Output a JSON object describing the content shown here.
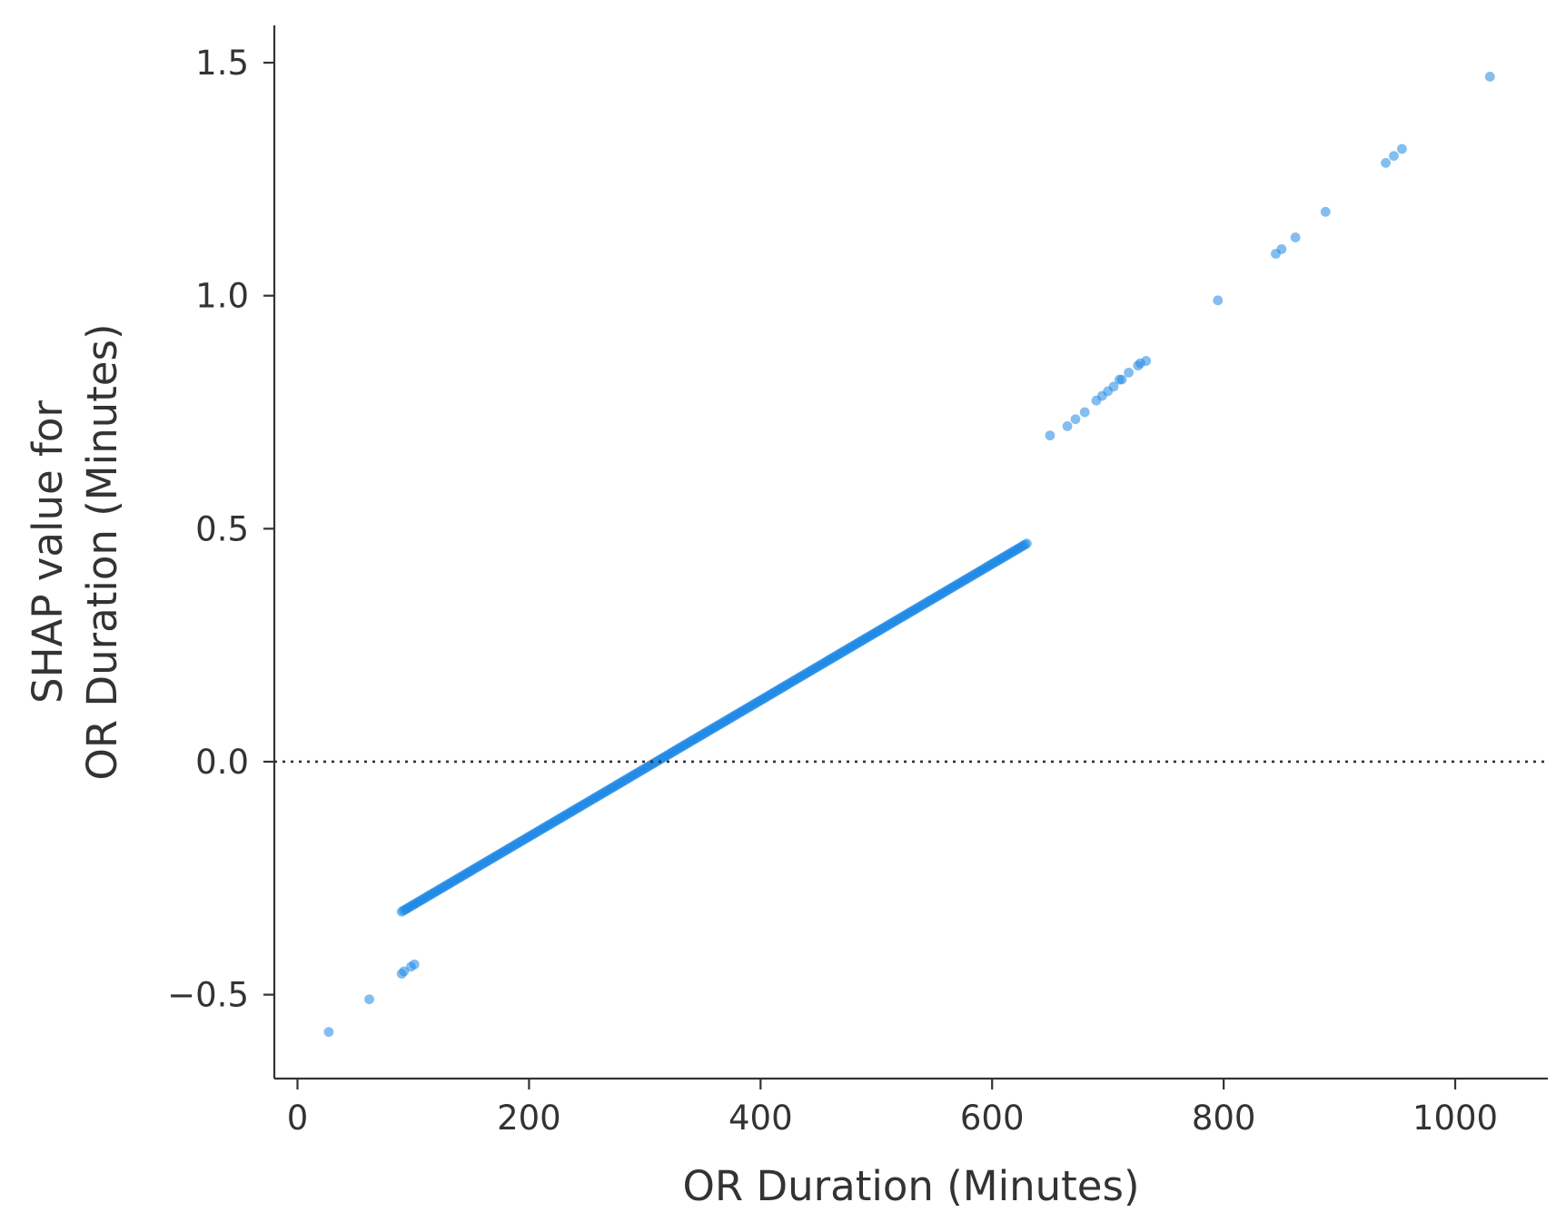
{
  "chart_data": {
    "type": "scatter",
    "title": "",
    "xlabel": "OR Duration (Minutes)",
    "ylabel_line1": "SHAP value for",
    "ylabel_line2": "OR Duration (Minutes)",
    "xlim": [
      -20,
      1080
    ],
    "ylim": [
      -0.68,
      1.58
    ],
    "x_ticks": [
      0,
      200,
      400,
      600,
      800,
      1000
    ],
    "x_tick_labels": [
      "0",
      "200",
      "400",
      "600",
      "800",
      "1000"
    ],
    "y_ticks": [
      -0.5,
      0.0,
      0.5,
      1.0,
      1.5
    ],
    "y_tick_labels": [
      "−0.5",
      "0.0",
      "0.5",
      "1.0",
      "1.5"
    ],
    "reference_line": {
      "y": 0.0,
      "style": "dotted"
    },
    "marker_color": "#1e88e5",
    "marker_opacity": 0.55,
    "grid": false,
    "legend": "none",
    "trend": {
      "x_start": 90,
      "x_end": 735,
      "slope": 0.001463,
      "zero_crossing": 310,
      "step": 1.5
    },
    "points": [
      {
        "x": 27,
        "y": -0.58
      },
      {
        "x": 62,
        "y": -0.51
      },
      {
        "x": 90,
        "y": -0.455
      },
      {
        "x": 92,
        "y": -0.45
      },
      {
        "x": 98,
        "y": -0.44
      },
      {
        "x": 101,
        "y": -0.435
      },
      {
        "x": 650,
        "y": 0.7
      },
      {
        "x": 665,
        "y": 0.72
      },
      {
        "x": 672,
        "y": 0.735
      },
      {
        "x": 680,
        "y": 0.75
      },
      {
        "x": 690,
        "y": 0.775
      },
      {
        "x": 695,
        "y": 0.785
      },
      {
        "x": 700,
        "y": 0.795
      },
      {
        "x": 705,
        "y": 0.805
      },
      {
        "x": 710,
        "y": 0.82
      },
      {
        "x": 712,
        "y": 0.82
      },
      {
        "x": 718,
        "y": 0.835
      },
      {
        "x": 726,
        "y": 0.85
      },
      {
        "x": 728,
        "y": 0.855
      },
      {
        "x": 733,
        "y": 0.86
      },
      {
        "x": 795,
        "y": 0.99
      },
      {
        "x": 845,
        "y": 1.09
      },
      {
        "x": 850,
        "y": 1.1
      },
      {
        "x": 862,
        "y": 1.125
      },
      {
        "x": 888,
        "y": 1.18
      },
      {
        "x": 940,
        "y": 1.285
      },
      {
        "x": 947,
        "y": 1.3
      },
      {
        "x": 954,
        "y": 1.315
      },
      {
        "x": 1030,
        "y": 1.47
      }
    ]
  }
}
